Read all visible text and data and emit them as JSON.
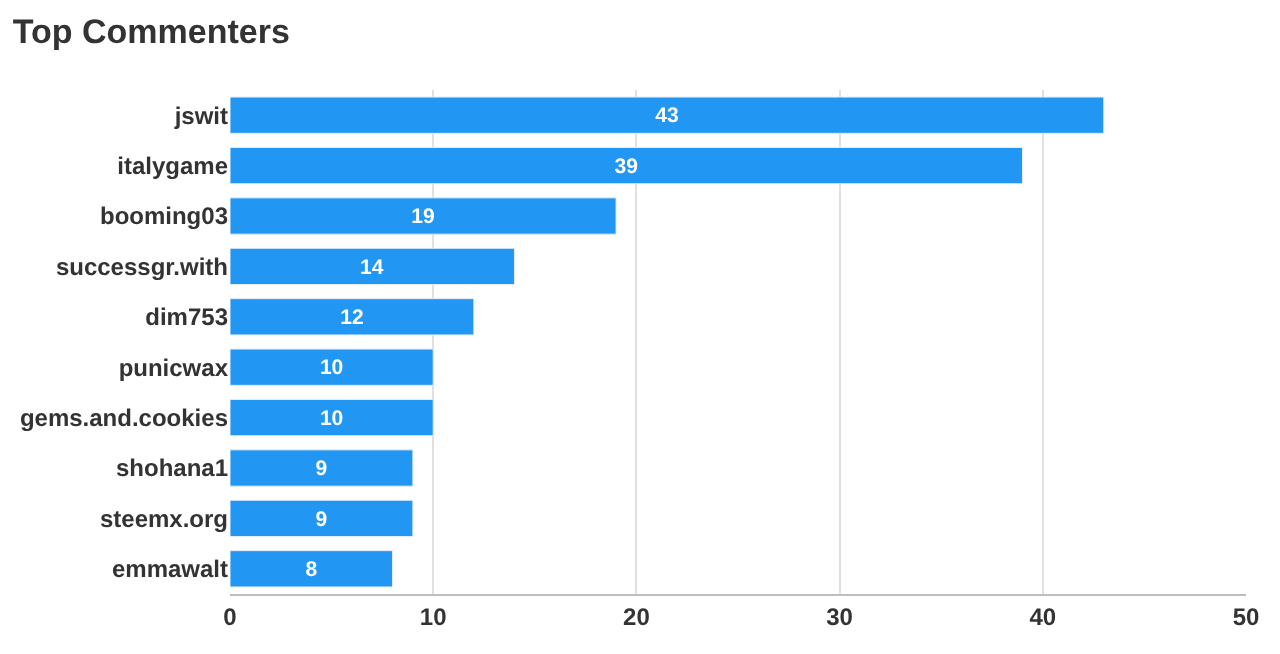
{
  "chart_data": {
    "type": "bar",
    "title": "Top Commenters",
    "orientation": "horizontal",
    "categories": [
      "jswit",
      "italygame",
      "booming03",
      "successgr.with",
      "dim753",
      "punicwax",
      "gems.and.cookies",
      "shohana1",
      "steemx.org",
      "emmawalt"
    ],
    "values": [
      43,
      39,
      19,
      14,
      12,
      10,
      10,
      9,
      9,
      8
    ],
    "color": "#2196f3",
    "xlim": [
      0,
      50
    ],
    "xticks": [
      0,
      10,
      20,
      30,
      40,
      50
    ],
    "grid": "x",
    "data_labels": true,
    "legend": false
  }
}
